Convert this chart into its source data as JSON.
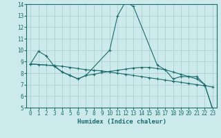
{
  "xlabel": "Humidex (Indice chaleur)",
  "xlim": [
    -0.5,
    23.5
  ],
  "ylim": [
    5,
    14
  ],
  "xticks": [
    0,
    1,
    2,
    3,
    4,
    5,
    6,
    7,
    8,
    9,
    10,
    11,
    12,
    13,
    14,
    15,
    16,
    17,
    18,
    19,
    20,
    21,
    22,
    23
  ],
  "yticks": [
    5,
    6,
    7,
    8,
    9,
    10,
    11,
    12,
    13,
    14
  ],
  "background_color": "#cce9ec",
  "grid_color": "#a8cccc",
  "line_color": "#1a6b6b",
  "line1_x": [
    0,
    1,
    2,
    3,
    4,
    5,
    6,
    7,
    10,
    11,
    12,
    13,
    16,
    17,
    18,
    19,
    20,
    21,
    22,
    23
  ],
  "line1_y": [
    8.8,
    9.9,
    9.5,
    8.6,
    8.1,
    7.8,
    7.5,
    7.8,
    10.0,
    13.0,
    14.2,
    13.8,
    8.7,
    8.3,
    7.5,
    7.7,
    7.7,
    7.7,
    7.0,
    4.9
  ],
  "line2_x": [
    0,
    1,
    2,
    3,
    4,
    5,
    6,
    7,
    8,
    9,
    10,
    11,
    12,
    13,
    14,
    15,
    16,
    17,
    18,
    19,
    20,
    21,
    22,
    23
  ],
  "line2_y": [
    8.8,
    8.75,
    8.7,
    8.65,
    8.6,
    8.5,
    8.4,
    8.3,
    8.25,
    8.2,
    8.1,
    8.0,
    7.9,
    7.8,
    7.7,
    7.6,
    7.5,
    7.4,
    7.3,
    7.2,
    7.1,
    7.0,
    6.9,
    6.8
  ],
  "line3_x": [
    0,
    3,
    4,
    5,
    6,
    7,
    8,
    9,
    10,
    11,
    12,
    13,
    14,
    15,
    16,
    17,
    18,
    19,
    20,
    21,
    22,
    23
  ],
  "line3_y": [
    8.8,
    8.65,
    8.1,
    7.8,
    7.5,
    7.8,
    7.9,
    8.05,
    8.15,
    8.25,
    8.35,
    8.45,
    8.5,
    8.5,
    8.4,
    8.3,
    8.1,
    7.9,
    7.7,
    7.5,
    7.0,
    4.85
  ]
}
